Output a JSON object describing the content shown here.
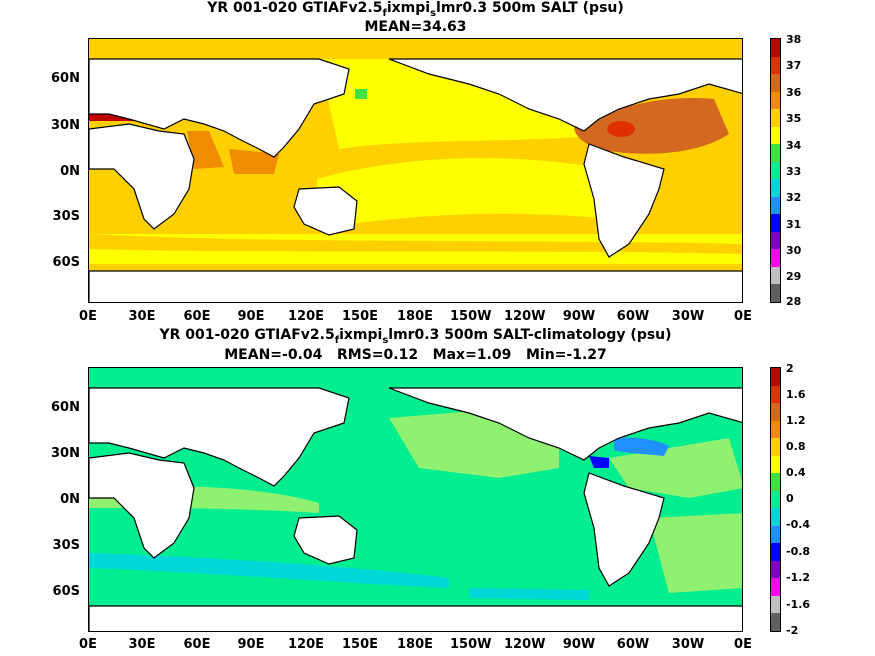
{
  "map1": {
    "title_pre": "YR 001-020 GTIAFv2.5",
    "title_sub1": "f",
    "title_mid": "ixmpi",
    "title_sub2": "s",
    "title_post": "lmr0.3 500m SALT (psu)",
    "subtitle": "MEAN=34.63",
    "lat_labels": [
      "60N",
      "30N",
      "0N",
      "30S",
      "60S"
    ],
    "lon_labels": [
      "0E",
      "30E",
      "60E",
      "90E",
      "120E",
      "150E",
      "180E",
      "150W",
      "120W",
      "90W",
      "60W",
      "30W",
      "0E"
    ],
    "colorbar": {
      "labels": [
        "38",
        "37",
        "36",
        "35",
        "34",
        "33",
        "32",
        "31",
        "30",
        "29",
        "28"
      ],
      "colors": [
        "#c00000",
        "#e03000",
        "#d2691e",
        "#f08c00",
        "#ffd000",
        "#ffff00",
        "#40e040",
        "#00ee90",
        "#00d8d8",
        "#2090ff",
        "#0000ff",
        "#8000d0",
        "#ff00ff",
        "#c0c0c0",
        "#606060"
      ]
    }
  },
  "map2": {
    "title_pre": "YR 001-020 GTIAFv2.5",
    "title_sub1": "f",
    "title_mid": "ixmpi",
    "title_sub2": "s",
    "title_post": "lmr0.3 500m SALT-climatology (psu)",
    "subtitle": "MEAN=-0.04   RMS=0.12   Max=1.09   Min=-1.27",
    "lat_labels": [
      "60N",
      "30N",
      "0N",
      "30S",
      "60S"
    ],
    "lon_labels": [
      "0E",
      "30E",
      "60E",
      "90E",
      "120E",
      "150E",
      "180E",
      "150W",
      "120W",
      "90W",
      "60W",
      "30W",
      "0E"
    ],
    "colorbar": {
      "labels": [
        "2",
        "1.6",
        "1.2",
        "0.8",
        "0.4",
        "0",
        "-0.4",
        "-0.8",
        "-1.2",
        "-1.6",
        "-2"
      ],
      "colors": [
        "#c00000",
        "#e03000",
        "#d2691e",
        "#f08c00",
        "#ffd000",
        "#ffff00",
        "#40e040",
        "#00ee90",
        "#00d8d8",
        "#2090ff",
        "#0000ff",
        "#8000d0",
        "#ff00ff",
        "#c0c0c0",
        "#606060"
      ]
    }
  },
  "colors": {
    "land": "#ffffff",
    "coast": "#000000"
  }
}
